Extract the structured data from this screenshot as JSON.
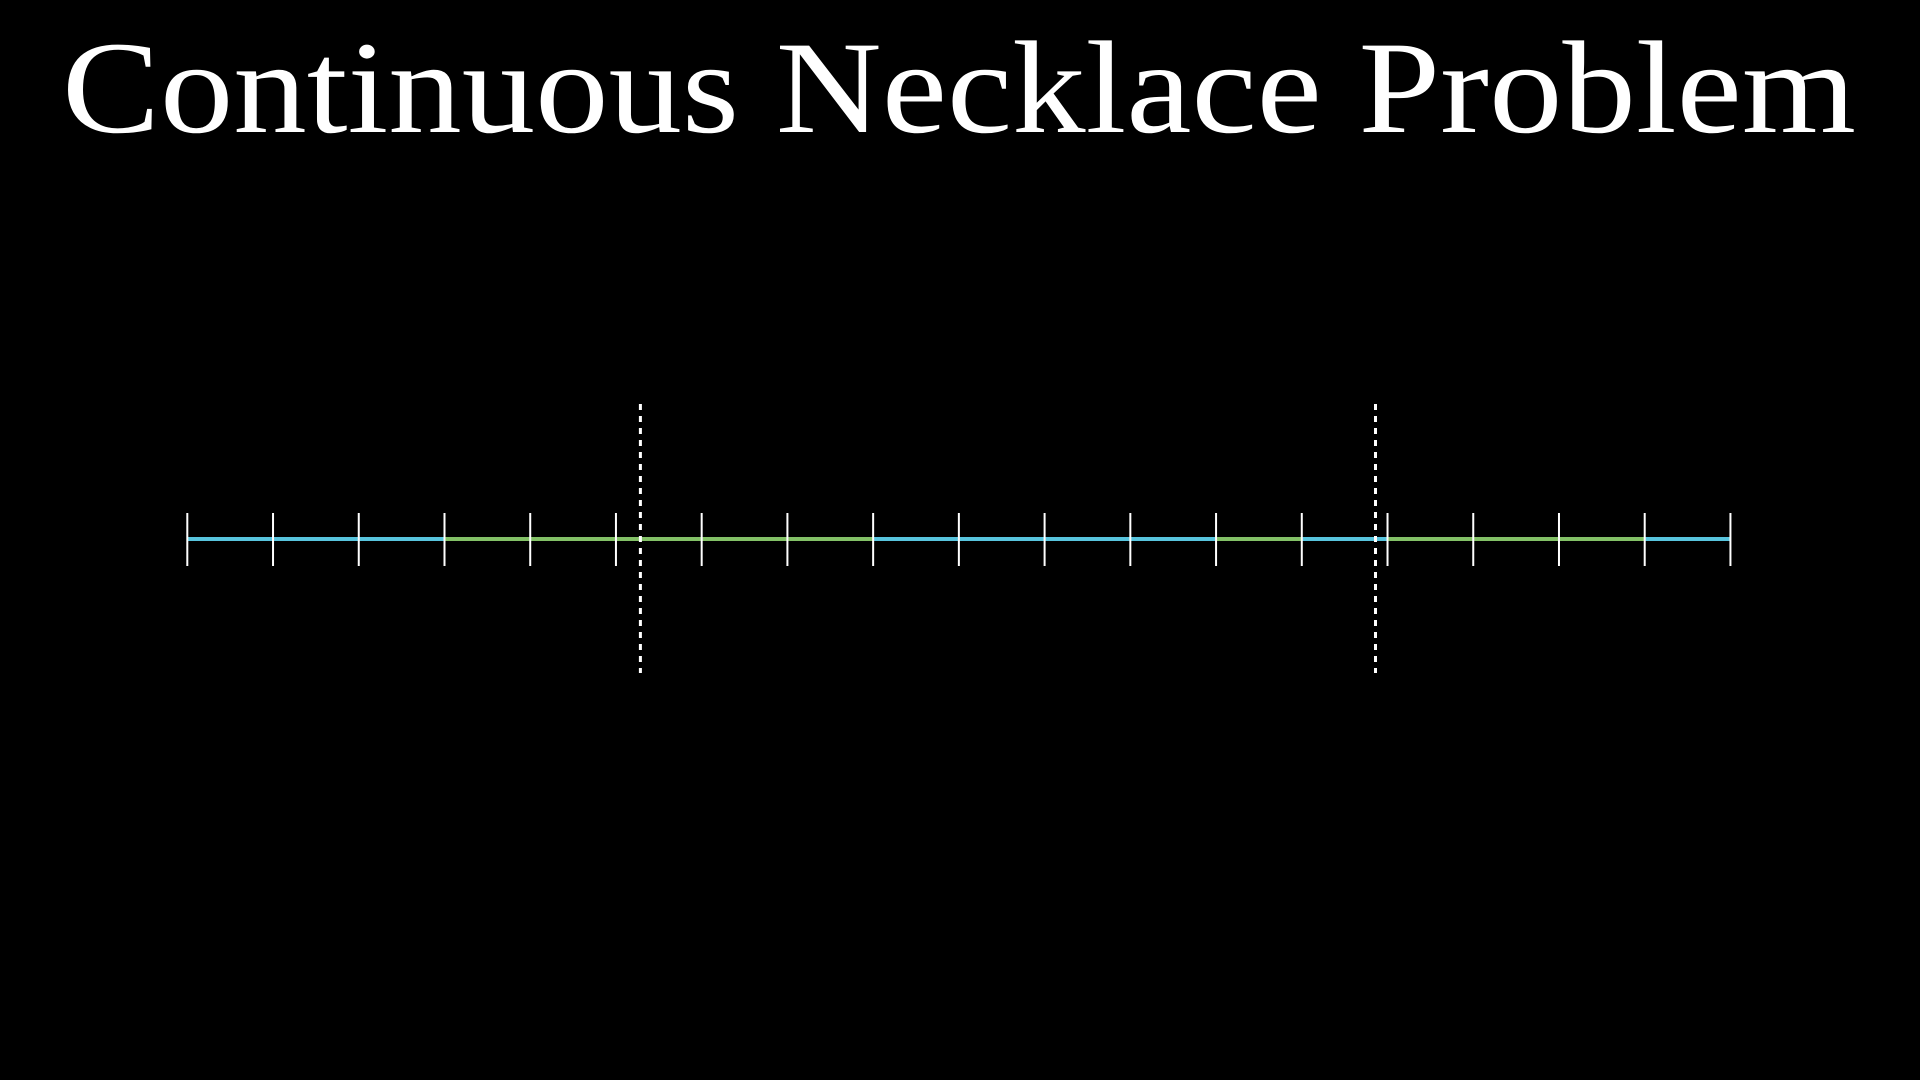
{
  "header": {
    "title": "Continuous Necklace Problem"
  }
}
